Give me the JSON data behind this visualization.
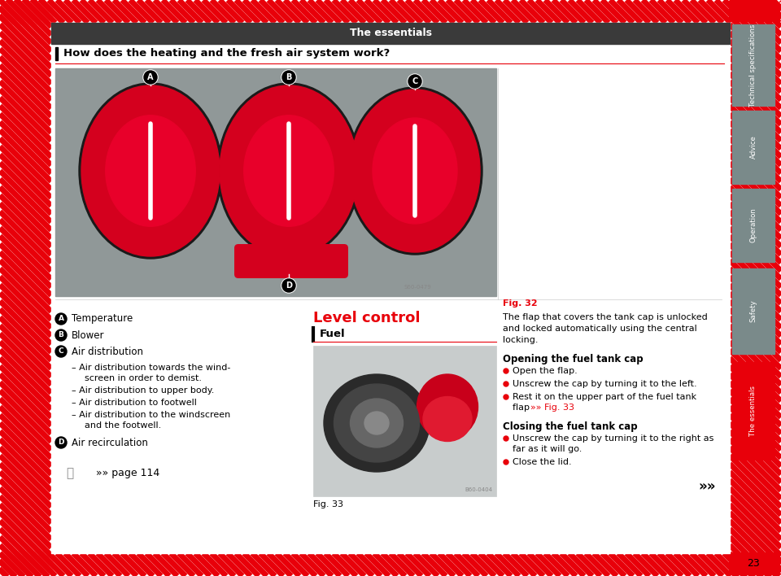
{
  "title": "The essentials",
  "title_bg": "#3a3a3a",
  "title_color": "#ffffff",
  "hatch_color": "#e8000a",
  "page_bg": "#ffffff",
  "section_question": "How does the heating and the fresh air system work?",
  "fig32_label": "Fig. 32",
  "fig33_label": "Fig. 33",
  "left_labels": [
    {
      "circle": "A",
      "text": "Temperature"
    },
    {
      "circle": "B",
      "text": "Blower"
    },
    {
      "circle": "C",
      "text": "Air distribution"
    }
  ],
  "sub_bullets": [
    [
      "– Air distribution towards the wind-",
      "screen in order to demist."
    ],
    [
      "– Air distribution to upper body."
    ],
    [
      "– Air distribution to footwell"
    ],
    [
      "– Air distribution to the windscreen",
      "and the footwell."
    ]
  ],
  "d_label": {
    "circle": "D",
    "text": "Air recirculation"
  },
  "page_ref": "»» page 114",
  "level_control_title": "Level control",
  "fuel_label": "Fuel",
  "right_intro": "The flap that covers the tank cap is unlocked\nand locked automatically using the central\nlocking.",
  "right_title1": "Opening the fuel tank cap",
  "right_bullets1": [
    "Open the flap.",
    "Unscrew the cap by turning it to the left.",
    [
      "Rest it on the upper part of the fuel tank",
      "flap »» Fig. 33."
    ]
  ],
  "right_title2": "Closing the fuel tank cap",
  "right_bullets2": [
    [
      "Unscrew the cap by turning it to the right as",
      "far as it will go."
    ],
    "Close the lid."
  ],
  "right_arrow": "»»",
  "tabs": [
    {
      "label": "Technical specifications"
    },
    {
      "label": "Advice"
    },
    {
      "label": "Operation"
    },
    {
      "label": "Safety"
    },
    {
      "label": "The essentials"
    }
  ],
  "tab_bg_inactive": "#7a8a8a",
  "tab_bg_active": "#e8000a",
  "tab_text_color": "#ffffff",
  "page_number": "23",
  "fig_ref_color": "#e8000a",
  "section_line_color": "#e8000a",
  "level_control_color": "#e8000a",
  "knob_gray_bg": "#909898",
  "knob_dark": "#2a2a2a",
  "knob_red": "#d4001e",
  "knob_red_light": "#e8003a"
}
